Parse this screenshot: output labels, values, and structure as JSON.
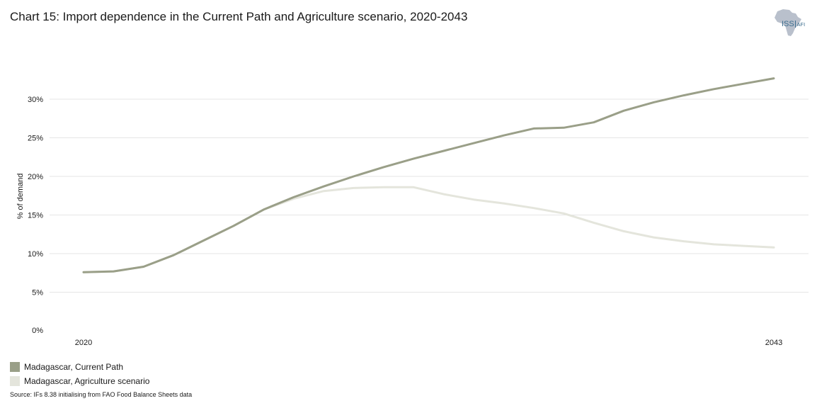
{
  "title": "Chart 15: Import dependence in the Current Path and Agriculture scenario, 2020-2043",
  "logo": {
    "text_left": "ISS",
    "text_right": "AFI",
    "icon": "africa-map-icon"
  },
  "source": "Source: IFs 8.38 initialising from FAO Food Balance Sheets data",
  "colors": {
    "current_path": "#9a9f88",
    "agriculture": "#e4e5dc",
    "grid": "#e6e6e6",
    "logo_map": "#b9c0cc",
    "logo_text": "#3d6e8f"
  },
  "chart_data": {
    "type": "line",
    "title": "Chart 15: Import dependence in the Current Path and Agriculture scenario, 2020-2043",
    "xlabel": "",
    "ylabel": "% of demand",
    "x": [
      2020,
      2021,
      2022,
      2023,
      2024,
      2025,
      2026,
      2027,
      2028,
      2029,
      2030,
      2031,
      2032,
      2033,
      2034,
      2035,
      2036,
      2037,
      2038,
      2039,
      2040,
      2041,
      2042,
      2043
    ],
    "x_tick_labels": [
      {
        "x": 2020,
        "label": "2020"
      },
      {
        "x": 2043,
        "label": "2043"
      }
    ],
    "y_ticks": [
      0,
      5,
      10,
      15,
      20,
      25,
      30
    ],
    "y_tick_labels": [
      "0%",
      "5%",
      "10%",
      "15%",
      "20%",
      "25%",
      "30%"
    ],
    "xlim": [
      2020,
      2043
    ],
    "ylim": [
      0,
      32
    ],
    "grid": true,
    "legend_position": "bottom-left",
    "series": [
      {
        "name": "Madagascar, Current Path",
        "color_key": "current_path",
        "values": [
          7.6,
          7.7,
          8.3,
          9.8,
          11.7,
          13.6,
          15.7,
          17.3,
          18.7,
          20.0,
          21.2,
          22.3,
          23.3,
          24.3,
          25.3,
          26.2,
          26.3,
          27.0,
          28.5,
          29.6,
          30.5,
          31.3,
          32.0,
          32.7
        ]
      },
      {
        "name": "Madagascar, Agriculture scenario",
        "color_key": "agriculture",
        "values": [
          7.6,
          7.7,
          8.3,
          9.8,
          11.7,
          13.6,
          15.7,
          17.1,
          18.1,
          18.5,
          18.6,
          18.6,
          17.7,
          17.0,
          16.5,
          15.9,
          15.2,
          14.0,
          12.9,
          12.1,
          11.6,
          11.2,
          11.0,
          10.8
        ]
      }
    ]
  }
}
